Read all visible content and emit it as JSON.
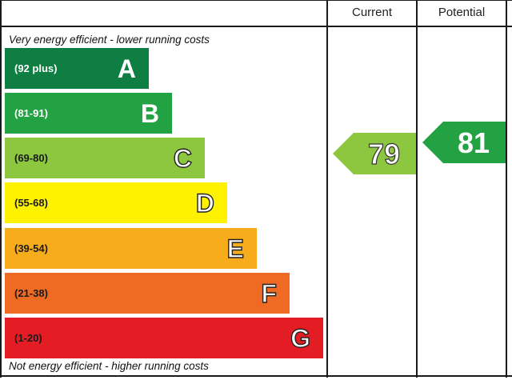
{
  "chart_data": {
    "type": "energy-rating",
    "columns": {
      "current": "Current",
      "potential": "Potential"
    },
    "top_note": "Very energy efficient - lower running costs",
    "bottom_note": "Not energy efficient - higher running costs",
    "bands": [
      {
        "letter": "A",
        "range": "(92 plus)",
        "min": 92,
        "max": 100,
        "color": "#0e7e43",
        "range_color": "#ffffff"
      },
      {
        "letter": "B",
        "range": "(81-91)",
        "min": 81,
        "max": 91,
        "color": "#22a242",
        "range_color": "#ffffff"
      },
      {
        "letter": "C",
        "range": "(69-80)",
        "min": 69,
        "max": 80,
        "color": "#8dc63f",
        "range_color": "#1a1a1a"
      },
      {
        "letter": "D",
        "range": "(55-68)",
        "min": 55,
        "max": 68,
        "color": "#fff200",
        "range_color": "#1a1a1a"
      },
      {
        "letter": "E",
        "range": "(39-54)",
        "min": 39,
        "max": 54,
        "color": "#f7ac1c",
        "range_color": "#1a1a1a"
      },
      {
        "letter": "F",
        "range": "(21-38)",
        "min": 21,
        "max": 38,
        "color": "#ef6b23",
        "range_color": "#1a1a1a"
      },
      {
        "letter": "G",
        "range": "(1-20)",
        "min": 1,
        "max": 20,
        "color": "#e31d23",
        "range_color": "#1a1a1a"
      }
    ],
    "current": {
      "value": 79,
      "band": "C",
      "color": "#8dc63f"
    },
    "potential": {
      "value": 81,
      "band": "B",
      "color": "#22a242"
    }
  }
}
